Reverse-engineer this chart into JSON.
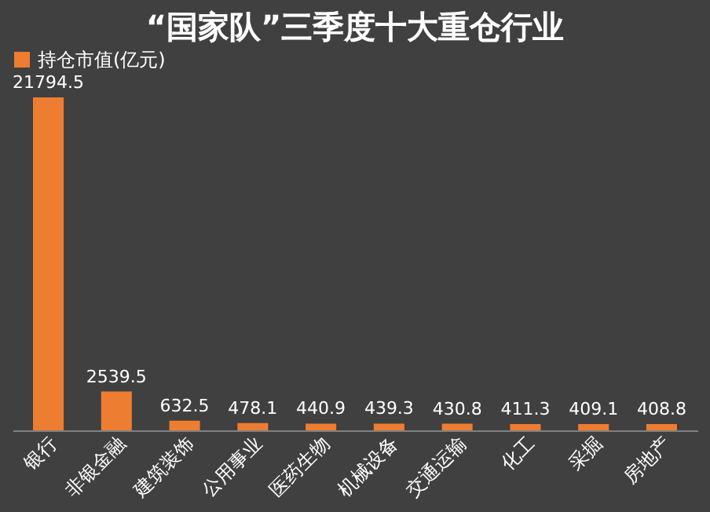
{
  "chart_data": {
    "type": "bar",
    "title": "“国家队”三季度十大重仓行业",
    "categories": [
      "银行",
      "非银金融",
      "建筑装饰",
      "公用事业",
      "医药生物",
      "机械设备",
      "交通运输",
      "化工",
      "采掘",
      "房地产"
    ],
    "series": [
      {
        "name": "持仓市值(亿元)",
        "color": "#ed7d31",
        "values": [
          21794.5,
          2539.5,
          632.5,
          478.1,
          440.9,
          439.3,
          430.8,
          411.3,
          409.1,
          408.8
        ]
      }
    ],
    "data_labels": true,
    "legend": "top"
  }
}
